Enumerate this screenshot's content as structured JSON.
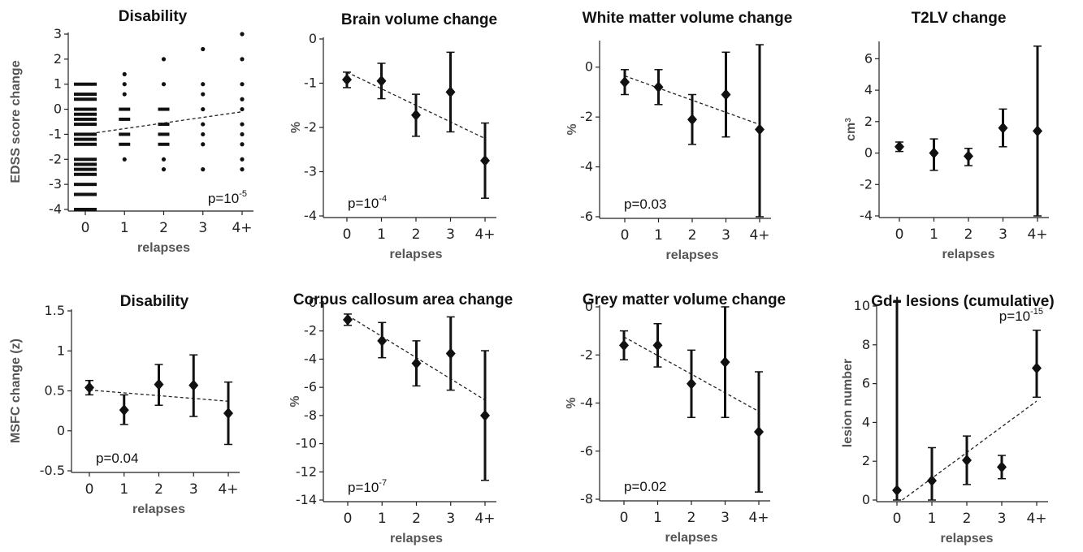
{
  "chart_data": [
    {
      "type": "scatter",
      "title": "Disability",
      "ylabel": "EDSS score change",
      "xlabel": "relapses",
      "categories": [
        "0",
        "1",
        "2",
        "3",
        "4+"
      ],
      "ylim": [
        -4,
        3
      ],
      "yticks": [
        -4,
        -3,
        -2,
        -1,
        0,
        1,
        2,
        3
      ],
      "points": [
        [
          0,
          1
        ],
        [
          0,
          0.6
        ],
        [
          0,
          0.4
        ],
        [
          0,
          0
        ],
        [
          0,
          -0.2
        ],
        [
          0,
          -0.4
        ],
        [
          0,
          -0.6
        ],
        [
          0,
          -1
        ],
        [
          0,
          -1.2
        ],
        [
          0,
          -1.4
        ],
        [
          0,
          -2
        ],
        [
          0,
          -2.2
        ],
        [
          0,
          -2.4
        ],
        [
          0,
          -2.6
        ],
        [
          0,
          -3
        ],
        [
          0,
          -3.4
        ],
        [
          0,
          -4
        ],
        [
          1,
          1.4
        ],
        [
          1,
          1
        ],
        [
          1,
          0.6
        ],
        [
          1,
          0
        ],
        [
          1,
          -0.4
        ],
        [
          1,
          -1
        ],
        [
          1,
          -1.4
        ],
        [
          1,
          -2
        ],
        [
          2,
          2
        ],
        [
          2,
          1
        ],
        [
          2,
          0
        ],
        [
          2,
          -0.6
        ],
        [
          2,
          -1
        ],
        [
          2,
          -1.4
        ],
        [
          2,
          -2
        ],
        [
          2,
          -2.4
        ],
        [
          3,
          2.4
        ],
        [
          3,
          1
        ],
        [
          3,
          0.6
        ],
        [
          3,
          0
        ],
        [
          3,
          -0.6
        ],
        [
          3,
          -1
        ],
        [
          3,
          -1.4
        ],
        [
          3,
          -2.4
        ],
        [
          4,
          3
        ],
        [
          4,
          2
        ],
        [
          4,
          1
        ],
        [
          4,
          0.4
        ],
        [
          4,
          0
        ],
        [
          4,
          -0.6
        ],
        [
          4,
          -1
        ],
        [
          4,
          -1.4
        ],
        [
          4,
          -2
        ],
        [
          4,
          -2.4
        ]
      ],
      "trend": [
        [
          0,
          -1
        ],
        [
          4,
          -0.1
        ]
      ],
      "pvalue": {
        "base": "p=10",
        "exp": "-5",
        "position": "bottom-right"
      }
    },
    {
      "type": "errorbar",
      "title": "Brain volume change",
      "ylabel": "%",
      "xlabel": "relapses",
      "categories": [
        "0",
        "1",
        "2",
        "3",
        "4+"
      ],
      "ylim": [
        -4,
        0
      ],
      "yticks": [
        -4,
        -3,
        -2,
        -1,
        0
      ],
      "means": [
        -0.92,
        -0.95,
        -1.72,
        -1.2,
        -2.75
      ],
      "lower": [
        -1.1,
        -1.35,
        -2.2,
        -2.1,
        -3.6
      ],
      "upper": [
        -0.75,
        -0.55,
        -1.25,
        -0.3,
        -1.9
      ],
      "trend": [
        [
          0,
          -0.75
        ],
        [
          4,
          -2.25
        ]
      ],
      "pvalue": {
        "base": "p=10",
        "exp": "-4",
        "position": "bottom-left"
      }
    },
    {
      "type": "errorbar",
      "title": "White matter volume change",
      "ylabel": "%",
      "xlabel": "relapses",
      "categories": [
        "0",
        "1",
        "2",
        "3",
        "4+"
      ],
      "ylim": [
        -6,
        1
      ],
      "yticks": [
        -6,
        -4,
        -2,
        0
      ],
      "means": [
        -0.6,
        -0.8,
        -2.1,
        -1.1,
        -2.5
      ],
      "lower": [
        -1.1,
        -1.5,
        -3.1,
        -2.8,
        -6
      ],
      "upper": [
        -0.1,
        -0.1,
        -1.1,
        0.6,
        0.9
      ],
      "trend": [
        [
          0,
          -0.35
        ],
        [
          4,
          -2.3
        ]
      ],
      "pvalue": {
        "base": "p=0.03",
        "exp": "",
        "position": "bottom-left"
      }
    },
    {
      "type": "errorbar",
      "title": "T2LV change",
      "ylabel": "cm³",
      "xlabel": "relapses",
      "categories": [
        "0",
        "1",
        "2",
        "3",
        "4+"
      ],
      "ylim": [
        -4,
        7
      ],
      "yticks": [
        -4,
        -2,
        0,
        2,
        4,
        6
      ],
      "means": [
        0.4,
        0,
        -0.2,
        1.6,
        1.4
      ],
      "lower": [
        0.1,
        -1.1,
        -0.8,
        0.4,
        -4
      ],
      "upper": [
        0.7,
        0.9,
        0.3,
        2.8,
        6.8
      ],
      "trend": null,
      "pvalue": null
    },
    {
      "type": "errorbar",
      "title": "Disability",
      "ylabel": "MSFC change (z)",
      "xlabel": "relapses",
      "categories": [
        "0",
        "1",
        "2",
        "3",
        "4+"
      ],
      "ylim": [
        -0.5,
        1.5
      ],
      "yticks": [
        -0.5,
        0,
        0.5,
        1,
        1.5
      ],
      "yticklabels": [
        "-0.5",
        "0",
        "0.5",
        "1",
        "1.5"
      ],
      "means": [
        0.54,
        0.26,
        0.58,
        0.57,
        0.22
      ],
      "lower": [
        0.45,
        0.08,
        0.32,
        0.18,
        -0.17
      ],
      "upper": [
        0.63,
        0.45,
        0.83,
        0.95,
        0.61
      ],
      "trend": [
        [
          0,
          0.51
        ],
        [
          4,
          0.37
        ]
      ],
      "pvalue": {
        "base": "p=0.04",
        "exp": "",
        "position": "bottom-left"
      }
    },
    {
      "type": "errorbar",
      "title": "Corpus callosum area change",
      "ylabel": "%",
      "xlabel": "relapses",
      "categories": [
        "0",
        "1",
        "2",
        "3",
        "4+"
      ],
      "ylim": [
        -14,
        0
      ],
      "yticks": [
        -14,
        -12,
        -10,
        -8,
        -6,
        -4,
        -2,
        0
      ],
      "means": [
        -1.2,
        -2.7,
        -4.3,
        -3.6,
        -8
      ],
      "lower": [
        -1.6,
        -3.9,
        -5.9,
        -6.2,
        -12.6
      ],
      "upper": [
        -0.8,
        -1.4,
        -2.7,
        -1,
        -3.4
      ],
      "trend": [
        [
          0,
          -0.9
        ],
        [
          4,
          -6.9
        ]
      ],
      "pvalue": {
        "base": "p=10",
        "exp": "-7",
        "position": "bottom-left"
      }
    },
    {
      "type": "errorbar",
      "title": "Grey matter volume change",
      "ylabel": "%",
      "xlabel": "relapses",
      "categories": [
        "0",
        "1",
        "2",
        "3",
        "4+"
      ],
      "ylim": [
        -8,
        0
      ],
      "yticks": [
        -8,
        -6,
        -4,
        -2,
        0
      ],
      "means": [
        -1.6,
        -1.6,
        -3.2,
        -2.3,
        -5.2
      ],
      "lower": [
        -2.2,
        -2.5,
        -4.6,
        -4.6,
        -7.7
      ],
      "upper": [
        -1,
        -0.7,
        -1.8,
        0,
        -2.7
      ],
      "trend": [
        [
          0,
          -1.25
        ],
        [
          4,
          -4.35
        ]
      ],
      "pvalue": {
        "base": "p=0.02",
        "exp": "",
        "position": "bottom-left"
      }
    },
    {
      "type": "errorbar",
      "title": "Gd+ lesions (cumulative)",
      "ylabel": "lesion number",
      "xlabel": "relapses",
      "categories": [
        "0",
        "1",
        "2",
        "3",
        "4+"
      ],
      "ylim": [
        0,
        10
      ],
      "yticks": [
        0,
        2,
        4,
        6,
        8,
        10
      ],
      "means": [
        0.5,
        1,
        2.05,
        1.7,
        6.8
      ],
      "lower": [
        0,
        0,
        0.8,
        1.1,
        5.3
      ],
      "upper": [
        10.2,
        2.7,
        3.3,
        2.3,
        8.75
      ],
      "trend": [
        [
          0.15,
          0
        ],
        [
          4,
          5.1
        ]
      ],
      "pvalue": {
        "base": "p=10",
        "exp": "-15",
        "position": "top-right"
      }
    }
  ]
}
